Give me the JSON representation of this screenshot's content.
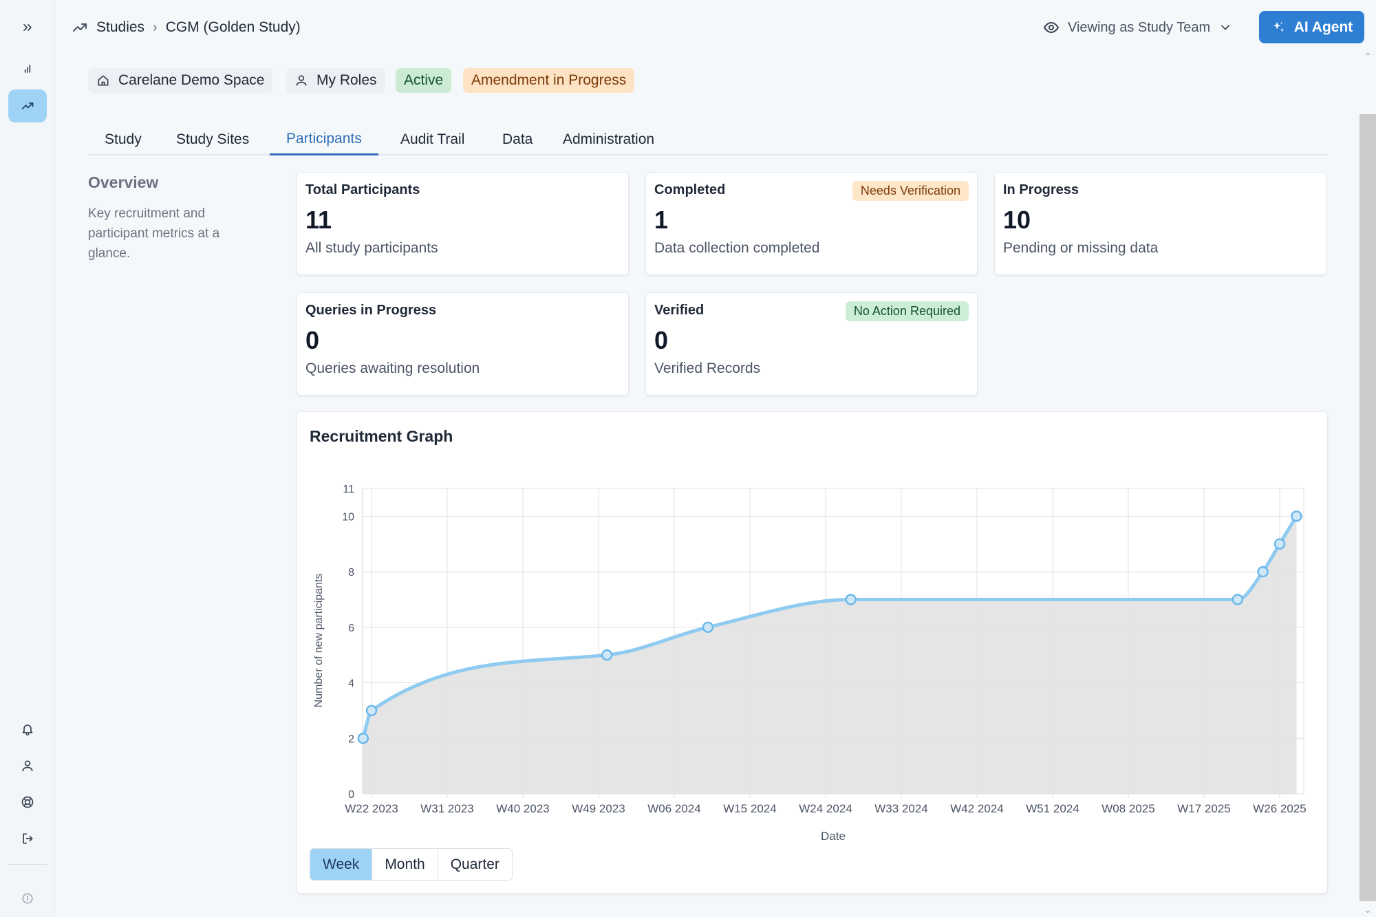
{
  "breadcrumb": {
    "root": "Studies",
    "current": "CGM (Golden Study)"
  },
  "header": {
    "viewing": "Viewing as Study Team",
    "ai_button": "AI Agent"
  },
  "pills": {
    "space": "Carelane Demo Space",
    "roles": "My Roles",
    "status": "Active",
    "amendment": "Amendment in Progress"
  },
  "tabs": [
    "Study",
    "Study Sites",
    "Participants",
    "Audit Trail",
    "Data",
    "Administration"
  ],
  "selected_tab": "Participants",
  "overview": {
    "title": "Overview",
    "description": "Key recruitment and participant metrics at a glance."
  },
  "cards": [
    {
      "title": "Total Participants",
      "value": "11",
      "sub": "All study participants",
      "badge": ""
    },
    {
      "title": "Completed",
      "value": "1",
      "sub": "Data collection completed",
      "badge": "Needs Verification"
    },
    {
      "title": "In Progress",
      "value": "10",
      "sub": "Pending or missing data",
      "badge": ""
    },
    {
      "title": "Queries in Progress",
      "value": "0",
      "sub": "Queries awaiting resolution",
      "badge": ""
    },
    {
      "title": "Verified",
      "value": "0",
      "sub": "Verified Records",
      "badge": "No Action Required"
    }
  ],
  "colors": {
    "accent": "#2e7fd3",
    "line": "#8fcaf0",
    "area": "#e4e4e4",
    "badge_warn": "#fde7c8",
    "badge_ok": "#cdeed6"
  },
  "icons": {
    "rail": [
      "chevrons-right-icon",
      "bar-chart-icon",
      "trend-up-icon",
      "bell-icon",
      "user-icon",
      "lifebuoy-icon",
      "logout-icon",
      "info-icon"
    ],
    "header": [
      "trend-up-icon",
      "eye-icon",
      "chevron-down-icon",
      "sparkles-icon"
    ]
  },
  "chart_data": {
    "type": "area",
    "title": "Recruitment Graph",
    "xlabel": "Date",
    "ylabel": "Number of new participants",
    "x_ticks": [
      "W22 2023",
      "W31 2023",
      "W40 2023",
      "W49 2023",
      "W06 2024",
      "W15 2024",
      "W24 2024",
      "W33 2024",
      "W42 2024",
      "W51 2024",
      "W08 2025",
      "W17 2025",
      "W26 2025"
    ],
    "y_ticks": [
      0,
      2,
      4,
      6,
      8,
      10,
      11
    ],
    "ylim": [
      0,
      11
    ],
    "grid": true,
    "series": [
      {
        "points": [
          {
            "x": "W21 2023",
            "y": 2
          },
          {
            "x": "W22 2023",
            "y": 3
          },
          {
            "x": "W50 2023",
            "y": 5
          },
          {
            "x": "W10 2024",
            "y": 6
          },
          {
            "x": "W27 2024",
            "y": 7
          },
          {
            "x": "W21 2025",
            "y": 7
          },
          {
            "x": "W24 2025",
            "y": 8
          },
          {
            "x": "W26 2025",
            "y": 9
          },
          {
            "x": "W28 2025",
            "y": 10
          }
        ]
      }
    ],
    "range_options": [
      "Week",
      "Month",
      "Quarter"
    ],
    "selected_range": "Week"
  }
}
